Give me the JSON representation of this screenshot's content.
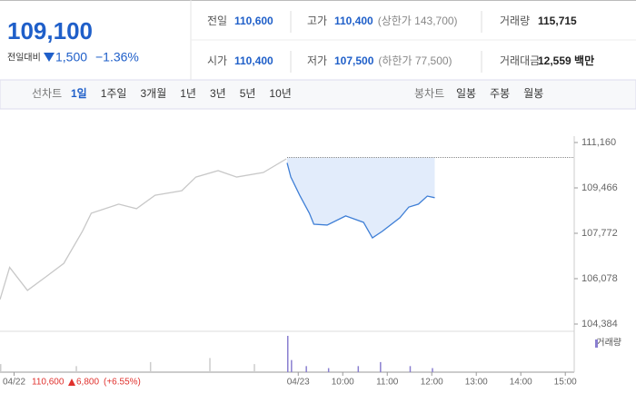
{
  "header": {
    "price": "109,100",
    "change_label": "전일대비",
    "change": "1,500",
    "change_pct": "−1.36%",
    "stats": [
      [
        {
          "label": "전일",
          "value": "110,600"
        },
        {
          "label": "고가",
          "value": "110,400",
          "sub": "(상한가 143,700)"
        },
        {
          "label": "거래량",
          "value": "115,715"
        }
      ],
      [
        {
          "label": "시가",
          "value": "110,400"
        },
        {
          "label": "저가",
          "value": "107,500",
          "sub": "(하한가 77,500)"
        },
        {
          "label": "거래대금",
          "value": "12,559 백만"
        }
      ]
    ]
  },
  "tabs": {
    "line_label": "선차트",
    "periods": [
      "1일",
      "1주일",
      "3개월",
      "1년",
      "3년",
      "5년",
      "10년"
    ],
    "candle_label": "봉차트",
    "candles": [
      "일봉",
      "주봉",
      "월봉"
    ]
  },
  "chart_data": {
    "type": "line",
    "series": [
      {
        "name": "04/22",
        "color": "#c8c8c8",
        "x": [
          -402,
          -389,
          -365,
          -340,
          -316,
          -291,
          -279,
          -242,
          -218,
          -193,
          -157,
          -138,
          -108,
          -83,
          -47,
          -16
        ],
        "values": [
          105300,
          106500,
          105640,
          106150,
          106650,
          107840,
          108520,
          108860,
          108690,
          109190,
          109360,
          109870,
          110110,
          109870,
          110040,
          110550
        ]
      },
      {
        "name": "04/23",
        "color": "#3f7fd6",
        "x": [
          -15,
          -10,
          2,
          15,
          21,
          39,
          64,
          88,
          100,
          113,
          137,
          149,
          162,
          174,
          184
        ],
        "values": [
          110400,
          109870,
          109190,
          108520,
          108110,
          108080,
          108420,
          108180,
          107600,
          107840,
          108350,
          108750,
          108860,
          109160,
          109100
        ]
      }
    ],
    "baseline": 110600,
    "volume": {
      "name": "거래량",
      "color": "#8a7fd0",
      "x": [
        -402,
        -300,
        -200,
        -120,
        -60,
        -15,
        -10,
        10,
        40,
        80,
        110,
        150,
        180
      ],
      "values": [
        20,
        15,
        25,
        35,
        20,
        90,
        30,
        15,
        10,
        15,
        25,
        15,
        10
      ]
    },
    "xlim": [
      -402,
      372
    ],
    "ylim": [
      104215,
      111397
    ],
    "xticks": [
      {
        "value": -383,
        "label": "04/22"
      },
      {
        "value": 0,
        "label": "04/23"
      },
      {
        "value": 60,
        "label": "10:00"
      },
      {
        "value": 120,
        "label": "11:00"
      },
      {
        "value": 180,
        "label": "12:00"
      },
      {
        "value": 240,
        "label": "13:00"
      },
      {
        "value": 300,
        "label": "14:00"
      },
      {
        "value": 360,
        "label": "15:00"
      }
    ],
    "yticks": [
      {
        "value": 111160,
        "label": "111,160"
      },
      {
        "value": 109466,
        "label": "109,466"
      },
      {
        "value": 107772,
        "label": "107,772"
      },
      {
        "value": 106078,
        "label": "106,078"
      },
      {
        "value": 104384,
        "label": "104,384"
      }
    ],
    "prev_day": {
      "close": "110,600",
      "change": "6,800",
      "pct": "(+6.55%)"
    }
  }
}
